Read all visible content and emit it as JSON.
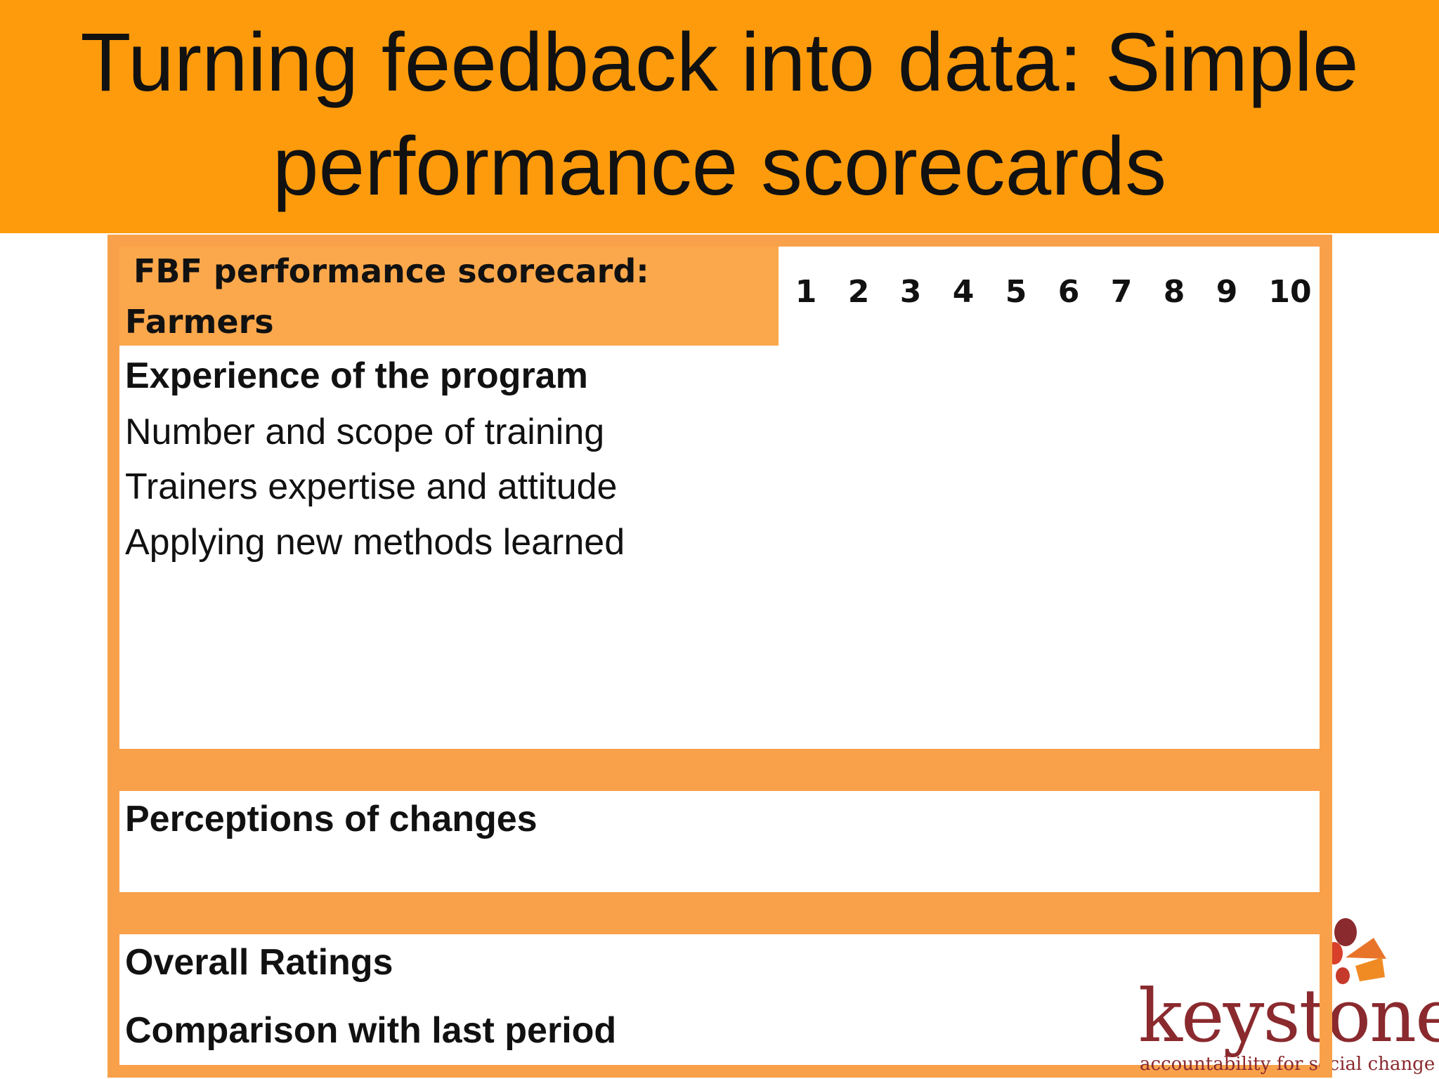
{
  "slide": {
    "title": "Turning feedback into data: Simple performance scorecards"
  },
  "scorecard": {
    "title": "FBF performance scorecard: Farmers",
    "scale": [
      "1",
      "2",
      "3",
      "4",
      "5",
      "6",
      "7",
      "8",
      "9",
      "10"
    ],
    "sections": {
      "experience": {
        "heading": "Experience of the program",
        "items": [
          "Number and scope of training",
          "Trainers expertise and attitude",
          "Applying new methods learned"
        ]
      },
      "perceptions": {
        "heading": "Perceptions of changes"
      },
      "overall": {
        "heading": "Overall Ratings",
        "comparison": "Comparison with last period"
      }
    }
  },
  "logo": {
    "name": "keystone",
    "tagline": "accountability for social change"
  },
  "colors": {
    "title_bar": "#fe9b0c",
    "card_frame": "#f9a04a",
    "logo_text": "#8a2a2e"
  }
}
